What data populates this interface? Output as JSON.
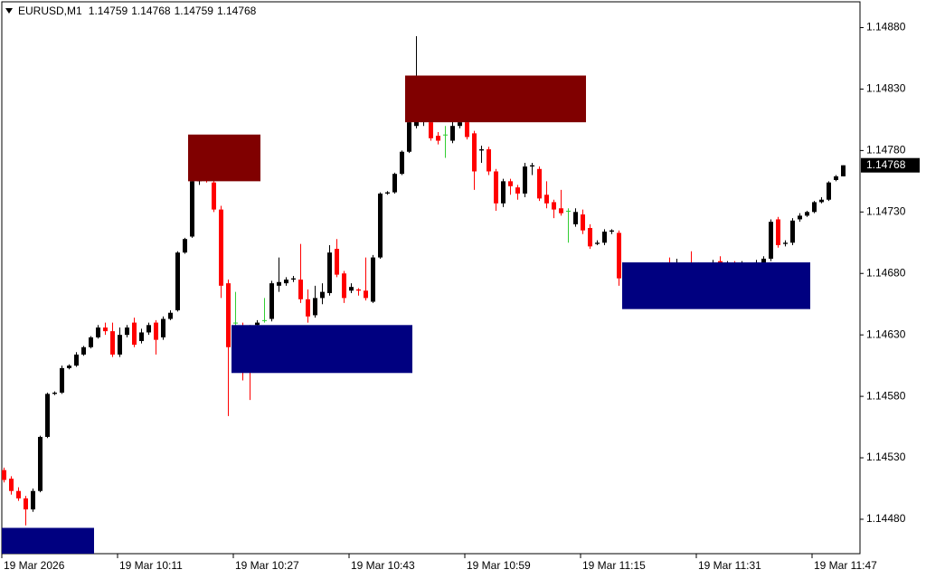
{
  "chart_data": {
    "type": "candlestick",
    "symbol": "EURUSD,M1",
    "bull_color": "#000000",
    "bear_color": "#ff0000",
    "doji_color": "#32cd32",
    "last_price_tag": true,
    "ylim": [
      1.14452,
      1.14901
    ],
    "yticks": [
      {
        "value": 1.1488,
        "label": "1.14880"
      },
      {
        "value": 1.1483,
        "label": "1.14830"
      },
      {
        "value": 1.1478,
        "label": "1.14780"
      },
      {
        "value": 1.1473,
        "label": "1.14730"
      },
      {
        "value": 1.1468,
        "label": "1.14680"
      },
      {
        "value": 1.1463,
        "label": "1.14630"
      },
      {
        "value": 1.1458,
        "label": "1.14580"
      },
      {
        "value": 1.1453,
        "label": "1.14530"
      },
      {
        "value": 1.1448,
        "label": "1.14480"
      }
    ],
    "xticks": [
      {
        "value": 0,
        "label": "19 Mar 2026"
      },
      {
        "value": 16,
        "label": "19 Mar 10:11"
      },
      {
        "value": 32,
        "label": "19 Mar 10:27"
      },
      {
        "value": 48,
        "label": "19 Mar 10:43"
      },
      {
        "value": 64,
        "label": "19 Mar 10:59"
      },
      {
        "value": 80,
        "label": "19 Mar 11:15"
      },
      {
        "value": 96,
        "label": "19 Mar 11:31"
      },
      {
        "value": 112,
        "label": "19 Mar 11:47"
      }
    ],
    "open": [
      1.1452,
      1.14513,
      1.14503,
      1.14497,
      1.14488,
      1.14503,
      1.14547,
      1.14582,
      1.14583,
      1.14603,
      1.14605,
      1.14614,
      1.1462,
      1.14628,
      1.14636,
      1.14633,
      1.14614,
      1.1463,
      1.1464,
      1.14625,
      1.14632,
      1.1464,
      1.14628,
      1.14643,
      1.1465,
      1.14697,
      1.1471,
      1.14755,
      1.14758,
      1.14754,
      1.14732,
      1.14672,
      1.1464,
      1.14637,
      1.14634,
      1.14638,
      1.14642,
      1.14643,
      1.1467,
      1.14672,
      1.14675,
      1.14675,
      1.14659,
      1.14646,
      1.1466,
      1.14664,
      1.147,
      1.1468,
      1.14666,
      1.14667,
      1.14666,
      1.14657,
      1.14693,
      1.14745,
      1.14746,
      1.14761,
      1.14779,
      1.148,
      1.1481,
      1.14803,
      1.14792,
      1.14793,
      1.14788,
      1.148,
      1.14803,
      1.14794,
      1.1478,
      1.14781,
      1.14763,
      1.14737,
      1.14755,
      1.1475,
      1.14745,
      1.14767,
      1.14765,
      1.14744,
      1.14738,
      1.14733,
      1.14731,
      1.1472,
      1.14728,
      1.14717,
      1.14704,
      1.14705,
      1.14714,
      1.14713,
      1.14675,
      1.1468,
      1.14684,
      1.14682,
      1.14685,
      1.14684,
      1.14689,
      1.14687,
      1.14688,
      1.14688,
      1.14685,
      1.14687,
      1.14686,
      1.1469,
      1.14688,
      1.14689,
      1.14687,
      1.14688,
      1.14687,
      1.14688,
      1.14692,
      1.14724,
      1.14704,
      1.14705,
      1.14724,
      1.14727,
      1.1473,
      1.14738,
      1.1474,
      1.14756,
      1.14759
    ],
    "high": [
      1.14522,
      1.14515,
      1.14506,
      1.14499,
      1.14505,
      1.14548,
      1.14583,
      1.14584,
      1.14605,
      1.14606,
      1.14616,
      1.14621,
      1.14629,
      1.14638,
      1.1464,
      1.1464,
      1.14636,
      1.14638,
      1.14644,
      1.14635,
      1.1464,
      1.14642,
      1.14645,
      1.1465,
      1.14698,
      1.14709,
      1.14757,
      1.14762,
      1.1476,
      1.14757,
      1.14735,
      1.14675,
      1.14665,
      1.1464,
      1.14638,
      1.14642,
      1.1466,
      1.14674,
      1.14693,
      1.14677,
      1.14678,
      1.14704,
      1.14667,
      1.1467,
      1.14672,
      1.14703,
      1.14708,
      1.14682,
      1.14672,
      1.14668,
      1.14693,
      1.14695,
      1.14746,
      1.14747,
      1.14762,
      1.1478,
      1.14804,
      1.14873,
      1.1483,
      1.1481,
      1.14795,
      1.148,
      1.14806,
      1.14806,
      1.14808,
      1.14796,
      1.14784,
      1.14783,
      1.14765,
      1.14757,
      1.14757,
      1.14752,
      1.1477,
      1.1477,
      1.14767,
      1.14755,
      1.1474,
      1.14748,
      1.14733,
      1.14733,
      1.14732,
      1.1472,
      1.14707,
      1.14716,
      1.14716,
      1.14715,
      1.14684,
      1.14687,
      1.14686,
      1.14687,
      1.14686,
      1.14689,
      1.14693,
      1.14692,
      1.14689,
      1.14698,
      1.14689,
      1.14688,
      1.14691,
      1.14694,
      1.1469,
      1.1469,
      1.1469,
      1.14689,
      1.14691,
      1.14694,
      1.14724,
      1.14726,
      1.14707,
      1.14725,
      1.14729,
      1.14731,
      1.14739,
      1.14742,
      1.14755,
      1.1476,
      1.14768
    ],
    "low": [
      1.1451,
      1.145,
      1.14495,
      1.14475,
      1.14486,
      1.14502,
      1.14546,
      1.14581,
      1.14582,
      1.14602,
      1.14604,
      1.14613,
      1.14619,
      1.14627,
      1.1463,
      1.14612,
      1.14612,
      1.14628,
      1.1462,
      1.14623,
      1.1463,
      1.14614,
      1.14626,
      1.14642,
      1.14649,
      1.14696,
      1.14709,
      1.14752,
      1.14754,
      1.1473,
      1.1466,
      1.14564,
      1.14636,
      1.14593,
      1.14577,
      1.14632,
      1.1464,
      1.14641,
      1.14665,
      1.1467,
      1.14673,
      1.14656,
      1.1464,
      1.14644,
      1.14655,
      1.14662,
      1.14677,
      1.14656,
      1.14664,
      1.14662,
      1.14658,
      1.14656,
      1.14692,
      1.14744,
      1.14745,
      1.1476,
      1.14778,
      1.14798,
      1.148,
      1.14788,
      1.14785,
      1.14774,
      1.14786,
      1.14798,
      1.14789,
      1.14748,
      1.1477,
      1.1476,
      1.14731,
      1.14734,
      1.14744,
      1.1474,
      1.14742,
      1.1476,
      1.14739,
      1.14733,
      1.14725,
      1.14727,
      1.14705,
      1.14718,
      1.14712,
      1.147,
      1.14703,
      1.14703,
      1.14712,
      1.1467,
      1.1467,
      1.14676,
      1.14678,
      1.14679,
      1.1468,
      1.14682,
      1.14684,
      1.14684,
      1.14683,
      1.14683,
      1.14682,
      1.14683,
      1.14684,
      1.14686,
      1.14685,
      1.14684,
      1.14685,
      1.14684,
      1.14685,
      1.14687,
      1.1469,
      1.14701,
      1.14702,
      1.14703,
      1.14722,
      1.14726,
      1.14729,
      1.14737,
      1.14739,
      1.14755,
      1.14759
    ],
    "close": [
      1.14512,
      1.14503,
      1.14497,
      1.14488,
      1.14503,
      1.14547,
      1.14582,
      1.14583,
      1.14603,
      1.14605,
      1.14614,
      1.1462,
      1.14628,
      1.14636,
      1.14633,
      1.14614,
      1.1463,
      1.14636,
      1.14622,
      1.14632,
      1.14638,
      1.14626,
      1.14643,
      1.14648,
      1.14697,
      1.14708,
      1.14755,
      1.14758,
      1.14757,
      1.14732,
      1.1467,
      1.1462,
      1.1464,
      1.14629,
      1.1463,
      1.1464,
      1.14642,
      1.14672,
      1.14673,
      1.14675,
      1.14676,
      1.14659,
      1.14645,
      1.1466,
      1.14665,
      1.14697,
      1.14679,
      1.1466,
      1.14669,
      1.14666,
      1.1466,
      1.14693,
      1.14745,
      1.14746,
      1.14761,
      1.14779,
      1.14803,
      1.14828,
      1.14822,
      1.1479,
      1.14788,
      1.14793,
      1.148,
      1.14803,
      1.14791,
      1.14763,
      1.14781,
      1.14763,
      1.14737,
      1.14755,
      1.14751,
      1.14745,
      1.14767,
      1.14768,
      1.14741,
      1.14737,
      1.14732,
      1.14729,
      1.14731,
      1.1473,
      1.14715,
      1.14702,
      1.14705,
      1.14714,
      1.14715,
      1.14676,
      1.1468,
      1.14684,
      1.14682,
      1.14685,
      1.14683,
      1.14687,
      1.14686,
      1.14688,
      1.14686,
      1.14685,
      1.14687,
      1.14686,
      1.14689,
      1.14688,
      1.14689,
      1.14687,
      1.14688,
      1.14687,
      1.14689,
      1.14692,
      1.14722,
      1.14703,
      1.14705,
      1.14723,
      1.14727,
      1.1473,
      1.14738,
      1.1474,
      1.14754,
      1.14759,
      1.14768
    ],
    "zones": [
      {
        "kind": "supply",
        "color": "#800000",
        "high": 1.14793,
        "low": 1.14755,
        "from": 26,
        "to": 35
      },
      {
        "kind": "supply",
        "color": "#800000",
        "high": 1.14841,
        "low": 1.14803,
        "from": 56,
        "to": 80
      },
      {
        "kind": "demand",
        "color": "#000080",
        "high": 1.14473,
        "low": 1.14452,
        "from": 0,
        "to": 12
      },
      {
        "kind": "demand",
        "color": "#000080",
        "high": 1.14638,
        "low": 1.14599,
        "from": 32,
        "to": 56
      },
      {
        "kind": "demand",
        "color": "#000080",
        "high": 1.14689,
        "low": 1.14651,
        "from": 86,
        "to": 111
      }
    ]
  }
}
